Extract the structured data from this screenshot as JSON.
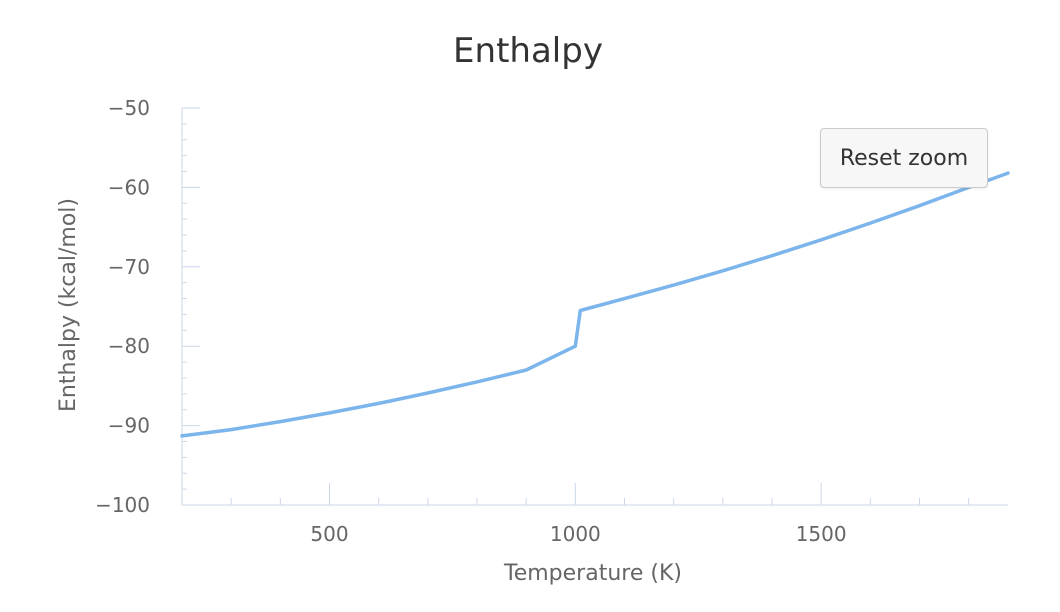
{
  "reset_zoom_label": "Reset zoom",
  "chart_data": {
    "type": "line",
    "title": "Enthalpy",
    "xlabel": "Temperature (K)",
    "ylabel": "Enthalpy (kcal/mol)",
    "xlim": [
      200,
      1880
    ],
    "ylim": [
      -100,
      -50
    ],
    "x_ticks": [
      500,
      1000,
      1500
    ],
    "y_ticks": [
      -50,
      -60,
      -70,
      -80,
      -90,
      -100
    ],
    "y_tick_labels": [
      "−50",
      "−60",
      "−70",
      "−80",
      "−90",
      "−100"
    ],
    "grid": false,
    "legend": "none",
    "series": [
      {
        "color": "#7cb5ec",
        "x": [
          200,
          300,
          400,
          500,
          600,
          700,
          800,
          900,
          1000,
          1010,
          1100,
          1200,
          1300,
          1400,
          1500,
          1600,
          1700,
          1800,
          1880
        ],
        "y": [
          -91.3,
          -90.5,
          -89.5,
          -88.4,
          -87.2,
          -85.9,
          -84.5,
          -83.0,
          -80.0,
          -75.5,
          -74.0,
          -72.3,
          -70.5,
          -68.6,
          -66.6,
          -64.5,
          -62.3,
          -60.0,
          -58.2
        ]
      }
    ]
  }
}
